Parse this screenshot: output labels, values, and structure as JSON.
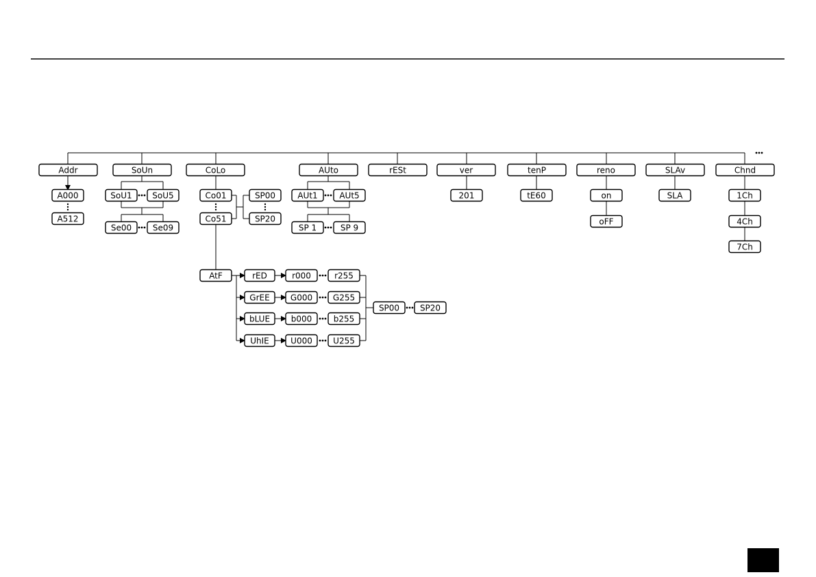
{
  "nodes": [
    {
      "label": "Addr"
    },
    {
      "label": "SoUn"
    },
    {
      "label": "CoLo"
    },
    {
      "label": "AUto"
    },
    {
      "label": "rESt"
    },
    {
      "label": "ver"
    },
    {
      "label": "tenP"
    },
    {
      "label": "reno"
    },
    {
      "label": "SLAv"
    },
    {
      "label": "Chnd"
    },
    {
      "label": "A000"
    },
    {
      "label": "A512"
    },
    {
      "label": "SoU1"
    },
    {
      "label": "SoU5"
    },
    {
      "label": "Se00"
    },
    {
      "label": "Se09"
    },
    {
      "label": "Co01"
    },
    {
      "label": "Co51"
    },
    {
      "label": "SP00"
    },
    {
      "label": "SP20"
    },
    {
      "label": "AUt1"
    },
    {
      "label": "AUt5"
    },
    {
      "label": "SP 1"
    },
    {
      "label": "SP 9"
    },
    {
      "label": "201"
    },
    {
      "label": "tE60"
    },
    {
      "label": "on"
    },
    {
      "label": "oFF"
    },
    {
      "label": "SLA"
    },
    {
      "label": "1Ch"
    },
    {
      "label": "4Ch"
    },
    {
      "label": "7Ch"
    },
    {
      "label": "AtF"
    },
    {
      "label": "rED"
    },
    {
      "label": "GrEE"
    },
    {
      "label": "bLUE"
    },
    {
      "label": "UhIE"
    },
    {
      "label": "r000"
    },
    {
      "label": "r255"
    },
    {
      "label": "G000"
    },
    {
      "label": "G255"
    },
    {
      "label": "b000"
    },
    {
      "label": "b255"
    },
    {
      "label": "U000"
    },
    {
      "label": "U255"
    },
    {
      "label": "SP00"
    },
    {
      "label": "SP20"
    }
  ]
}
